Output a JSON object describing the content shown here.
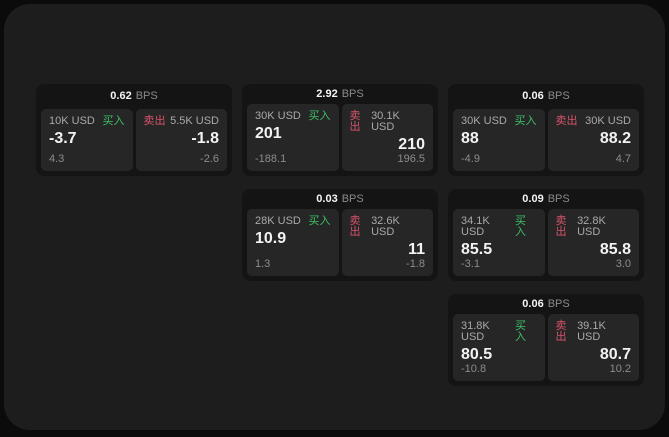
{
  "labels": {
    "buy": "买入",
    "sell": "卖出",
    "bps_unit": "BPS"
  },
  "colors": {
    "buy": "#3dc065",
    "sell": "#d9536b",
    "surface": "#1d1d1e",
    "card": "#141414",
    "panel": "#262627"
  },
  "cards": [
    {
      "bps": "0.62",
      "buy": {
        "amount": "10K USD",
        "value": "-3.7",
        "sub": "4.3"
      },
      "sell": {
        "amount": "5.5K USD",
        "value": "-1.8",
        "sub": "-2.6"
      }
    },
    {
      "bps": "2.92",
      "buy": {
        "amount": "30K USD",
        "value": "201",
        "sub": "-188.1"
      },
      "sell": {
        "amount": "30.1K USD",
        "value": "210",
        "sub": "196.5"
      }
    },
    {
      "bps": "0.06",
      "buy": {
        "amount": "30K USD",
        "value": "88",
        "sub": "-4.9"
      },
      "sell": {
        "amount": "30K USD",
        "value": "88.2",
        "sub": "4.7"
      }
    },
    {
      "bps": "0.03",
      "buy": {
        "amount": "28K USD",
        "value": "10.9",
        "sub": "1.3"
      },
      "sell": {
        "amount": "32.6K USD",
        "value": "11",
        "sub": "-1.8"
      }
    },
    {
      "bps": "0.09",
      "buy": {
        "amount": "34.1K USD",
        "value": "85.5",
        "sub": "-3.1"
      },
      "sell": {
        "amount": "32.8K USD",
        "value": "85.8",
        "sub": "3.0"
      }
    },
    {
      "bps": "0.06",
      "buy": {
        "amount": "31.8K USD",
        "value": "80.5",
        "sub": "-10.8"
      },
      "sell": {
        "amount": "39.1K USD",
        "value": "80.7",
        "sub": "10.2"
      }
    }
  ]
}
